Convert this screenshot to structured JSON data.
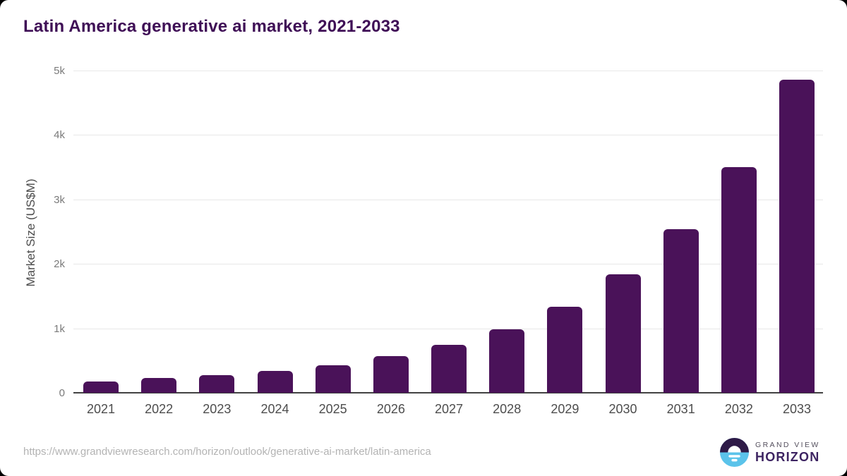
{
  "title": "Latin America generative ai market, 2021-2033",
  "chart_data": {
    "type": "bar",
    "title": "Latin America generative ai market, 2021-2033",
    "categories": [
      "2021",
      "2022",
      "2023",
      "2024",
      "2025",
      "2026",
      "2027",
      "2028",
      "2029",
      "2030",
      "2031",
      "2032",
      "2033"
    ],
    "values": [
      180,
      228,
      277,
      338,
      430,
      572,
      740,
      985,
      1340,
      1840,
      2535,
      3505,
      4855
    ],
    "xlabel": "",
    "ylabel": "Market Size (US$M)",
    "ylim": [
      0,
      5000
    ],
    "ytick_labels": [
      "0",
      "1k",
      "2k",
      "3k",
      "4k",
      "5k"
    ],
    "grid": "horizontal-only",
    "legend": "none",
    "bar_color": "#4a1259"
  },
  "colors": {
    "title": "#3f0f56",
    "bar": "#4a1259",
    "gridline": "#e8e8e8",
    "axis_line": "#424242",
    "tick_text": "#7a7a7a",
    "category_text": "#4d4d4d",
    "url_text": "#b3b3b3",
    "logo_icon_purple": "#2e1a47",
    "logo_icon_blue": "#5bc3ea",
    "logo_text_purple": "#3d2462"
  },
  "footer": {
    "source_url": "https://www.grandviewresearch.com/horizon/outlook/generative-ai-market/latin-america",
    "logo": {
      "top": "GRAND VIEW",
      "bottom": "HORIZON"
    }
  }
}
